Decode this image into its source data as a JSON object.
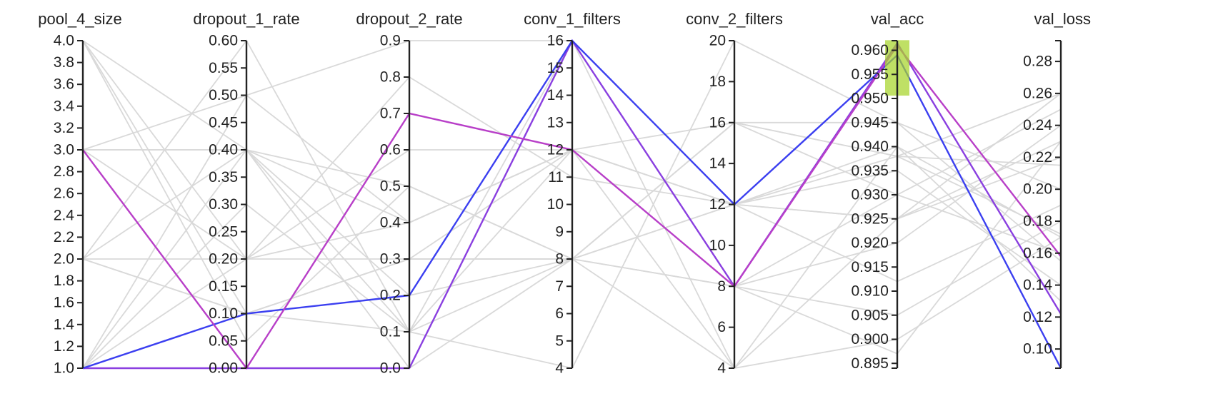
{
  "chart_data": {
    "type": "parallel_coordinates",
    "axes": [
      {
        "name": "pool_4_size",
        "range": [
          1.0,
          4.0
        ],
        "ticks": [
          "1.0",
          "1.2",
          "1.4",
          "1.6",
          "1.8",
          "2.0",
          "2.2",
          "2.4",
          "2.6",
          "2.8",
          "3.0",
          "3.2",
          "3.4",
          "3.6",
          "3.8",
          "4.0"
        ]
      },
      {
        "name": "dropout_1_rate",
        "range": [
          0.0,
          0.6
        ],
        "ticks": [
          "0.00",
          "0.05",
          "0.10",
          "0.15",
          "0.20",
          "0.25",
          "0.30",
          "0.35",
          "0.40",
          "0.45",
          "0.50",
          "0.55",
          "0.60"
        ]
      },
      {
        "name": "dropout_2_rate",
        "range": [
          0.0,
          0.9
        ],
        "ticks": [
          "0.0",
          "0.1",
          "0.2",
          "0.3",
          "0.4",
          "0.5",
          "0.6",
          "0.7",
          "0.8",
          "0.9"
        ]
      },
      {
        "name": "conv_1_filters",
        "range": [
          4,
          16
        ],
        "ticks": [
          "4",
          "5",
          "6",
          "7",
          "8",
          "9",
          "10",
          "11",
          "12",
          "13",
          "14",
          "15",
          "16"
        ]
      },
      {
        "name": "conv_2_filters",
        "range": [
          4,
          20
        ],
        "ticks": [
          "4",
          "6",
          "8",
          "10",
          "12",
          "14",
          "16",
          "18",
          "20"
        ]
      },
      {
        "name": "val_acc",
        "range": [
          0.894,
          0.962
        ],
        "ticks": [
          "0.895",
          "0.900",
          "0.905",
          "0.910",
          "0.915",
          "0.920",
          "0.925",
          "0.930",
          "0.935",
          "0.940",
          "0.945",
          "0.950",
          "0.955",
          "0.960"
        ]
      },
      {
        "name": "val_loss",
        "range": [
          0.088,
          0.293
        ],
        "ticks": [
          "0.10",
          "0.12",
          "0.14",
          "0.16",
          "0.18",
          "0.20",
          "0.22",
          "0.24",
          "0.26",
          "0.28"
        ]
      }
    ],
    "brush": {
      "axis": "val_acc",
      "range": [
        0.9506,
        0.9621
      ],
      "color": "#a6d42a"
    },
    "lines": [
      {
        "values": [
          1.0,
          0.0,
          0.0,
          16,
          8,
          0.9615,
          0.122
        ],
        "color": "#8a3fe0",
        "highlighted": true
      },
      {
        "values": [
          1.0,
          0.1,
          0.2,
          16,
          12,
          0.959,
          0.088
        ],
        "color": "#3b3ff0",
        "highlighted": true
      },
      {
        "values": [
          3.0,
          0.0,
          0.7,
          12,
          8,
          0.961,
          0.158
        ],
        "color": "#b83fc8",
        "highlighted": true
      },
      {
        "values": [
          4.0,
          0.1,
          0.3,
          8,
          12,
          0.925,
          0.26
        ],
        "color": "#d9d9d9",
        "highlighted": false
      },
      {
        "values": [
          4.0,
          0.4,
          0.5,
          8,
          16,
          0.945,
          0.2
        ],
        "color": "#d9d9d9",
        "highlighted": false
      },
      {
        "values": [
          3.0,
          0.4,
          0.4,
          12,
          12,
          0.938,
          0.172
        ],
        "color": "#d9d9d9",
        "highlighted": false
      },
      {
        "values": [
          3.0,
          0.5,
          0.9,
          16,
          8,
          0.92,
          0.24
        ],
        "color": "#d9d9d9",
        "highlighted": false
      },
      {
        "values": [
          3.0,
          0.2,
          0.6,
          12,
          16,
          0.938,
          0.215
        ],
        "color": "#d9d9d9",
        "highlighted": false
      },
      {
        "values": [
          2.0,
          0.1,
          0.3,
          8,
          4,
          0.94,
          0.17
        ],
        "color": "#d9d9d9",
        "highlighted": false
      },
      {
        "values": [
          2.0,
          0.2,
          0.8,
          11,
          12,
          0.935,
          0.14
        ],
        "color": "#d9d9d9",
        "highlighted": false
      },
      {
        "values": [
          2.0,
          0.1,
          0.3,
          12,
          8,
          0.897,
          0.23
        ],
        "color": "#d9d9d9",
        "highlighted": false
      },
      {
        "values": [
          1.0,
          0.4,
          0.1,
          4,
          20,
          0.945,
          0.155
        ],
        "color": "#d9d9d9",
        "highlighted": false
      },
      {
        "values": [
          1.0,
          0.3,
          0.1,
          8,
          8,
          0.93,
          0.25
        ],
        "color": "#d9d9d9",
        "highlighted": false
      },
      {
        "values": [
          1.0,
          0.5,
          0.4,
          12,
          12,
          0.912,
          0.19
        ],
        "color": "#d9d9d9",
        "highlighted": false
      },
      {
        "values": [
          2.0,
          0.6,
          0.1,
          16,
          4,
          0.925,
          0.22
        ],
        "color": "#d9d9d9",
        "highlighted": false
      },
      {
        "values": [
          4.0,
          0.05,
          0.5,
          8,
          16,
          0.938,
          0.26
        ],
        "color": "#d9d9d9",
        "highlighted": false
      },
      {
        "values": [
          3.0,
          0.4,
          0.0,
          8,
          8,
          0.905,
          0.18
        ],
        "color": "#d9d9d9",
        "highlighted": false
      },
      {
        "values": [
          1.0,
          0.1,
          0.1,
          12,
          12,
          0.94,
          0.13
        ],
        "color": "#d9d9d9",
        "highlighted": false
      },
      {
        "values": [
          2.0,
          0.4,
          0.2,
          8,
          16,
          0.93,
          0.16
        ],
        "color": "#d9d9d9",
        "highlighted": false
      },
      {
        "values": [
          1.0,
          0.2,
          0.3,
          8,
          12,
          0.925,
          0.23
        ],
        "color": "#d9d9d9",
        "highlighted": false
      },
      {
        "values": [
          4.0,
          0.2,
          0.4,
          12,
          4,
          0.9,
          0.17
        ],
        "color": "#d9d9d9",
        "highlighted": false
      }
    ]
  }
}
